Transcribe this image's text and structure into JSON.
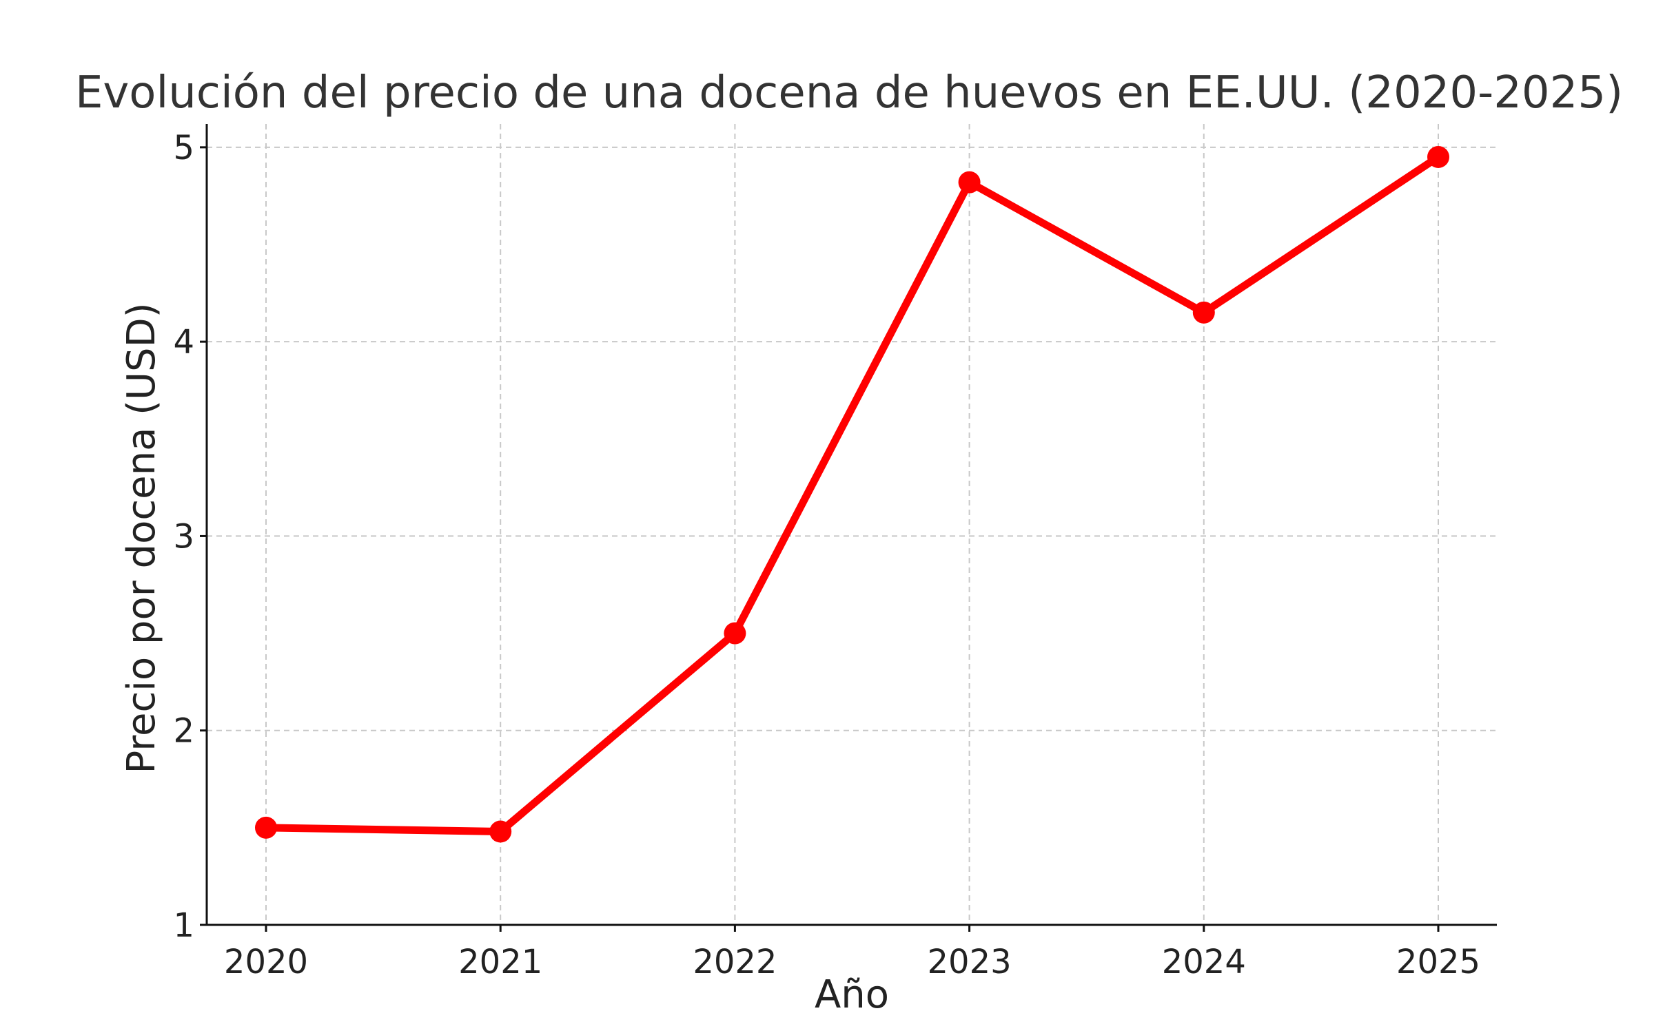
{
  "chart_data": {
    "type": "line",
    "title": "Evolución del precio de una docena de huevos en EE.UU. (2020-2025)",
    "xlabel": "Año",
    "ylabel": "Precio por docena (USD)",
    "categories": [
      "2020",
      "2021",
      "2022",
      "2023",
      "2024",
      "2025"
    ],
    "series": [
      {
        "values": [
          1.5,
          1.48,
          2.5,
          4.82,
          4.15,
          4.95
        ],
        "color": "#ff0000",
        "marker": "circle"
      }
    ],
    "ylim": [
      1,
      5.12
    ],
    "yticks": [
      1,
      2,
      3,
      4,
      5
    ],
    "grid": true,
    "grid_style": "dashed",
    "legend": "none"
  }
}
